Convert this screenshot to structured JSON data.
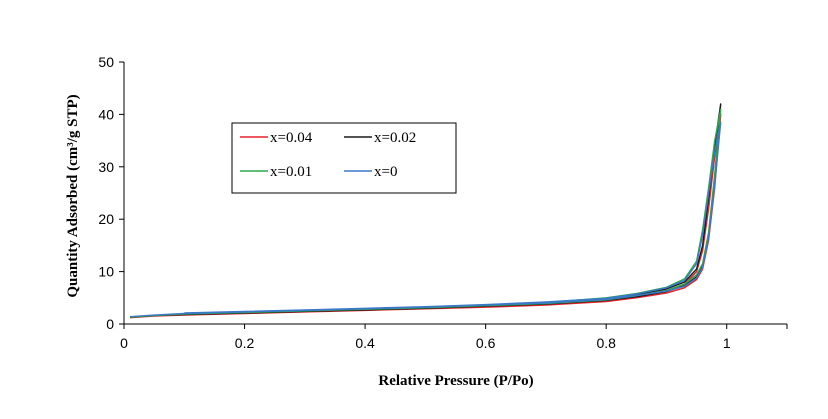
{
  "chart_data": {
    "type": "line",
    "xlabel": "Relative Pressure (P/Po)",
    "ylabel": "Quantity Adsorbed (cm³/g STP)",
    "xlim": [
      0,
      1.1
    ],
    "ylim": [
      0,
      50
    ],
    "x_ticks": [
      "0",
      "0.2",
      "0.4",
      "0.6",
      "0.8",
      "1"
    ],
    "y_ticks": [
      "0",
      "10",
      "20",
      "30",
      "40",
      "50"
    ],
    "grid": false,
    "legend_position": "upper-left",
    "series": [
      {
        "name": "x=0.04",
        "color": "#e8202a",
        "adsorption": [
          [
            0.01,
            1.2
          ],
          [
            0.05,
            1.5
          ],
          [
            0.1,
            1.7
          ],
          [
            0.2,
            2.0
          ],
          [
            0.3,
            2.3
          ],
          [
            0.4,
            2.6
          ],
          [
            0.5,
            2.9
          ],
          [
            0.6,
            3.2
          ],
          [
            0.7,
            3.6
          ],
          [
            0.8,
            4.3
          ],
          [
            0.85,
            5.0
          ],
          [
            0.9,
            5.9
          ],
          [
            0.93,
            6.9
          ],
          [
            0.95,
            8.5
          ],
          [
            0.96,
            10.5
          ],
          [
            0.97,
            16.0
          ],
          [
            0.98,
            26.0
          ],
          [
            0.99,
            40.0
          ]
        ],
        "desorption": [
          [
            0.99,
            40.0
          ],
          [
            0.98,
            32.0
          ],
          [
            0.97,
            22.0
          ],
          [
            0.96,
            14.0
          ],
          [
            0.95,
            10.0
          ],
          [
            0.93,
            7.6
          ],
          [
            0.9,
            6.4
          ],
          [
            0.85,
            5.3
          ],
          [
            0.8,
            4.6
          ],
          [
            0.7,
            3.8
          ],
          [
            0.6,
            3.3
          ],
          [
            0.5,
            3.0
          ],
          [
            0.4,
            2.7
          ],
          [
            0.3,
            2.4
          ],
          [
            0.2,
            2.1
          ],
          [
            0.1,
            1.8
          ]
        ]
      },
      {
        "name": "x=0.02",
        "color": "#1a1a1a",
        "adsorption": [
          [
            0.01,
            1.3
          ],
          [
            0.05,
            1.6
          ],
          [
            0.1,
            1.8
          ],
          [
            0.2,
            2.1
          ],
          [
            0.3,
            2.4
          ],
          [
            0.4,
            2.7
          ],
          [
            0.5,
            3.0
          ],
          [
            0.6,
            3.4
          ],
          [
            0.7,
            3.8
          ],
          [
            0.8,
            4.5
          ],
          [
            0.85,
            5.2
          ],
          [
            0.9,
            6.2
          ],
          [
            0.93,
            7.3
          ],
          [
            0.95,
            9.0
          ],
          [
            0.96,
            11.0
          ],
          [
            0.97,
            17.0
          ],
          [
            0.98,
            28.0
          ],
          [
            0.99,
            42.0
          ]
        ],
        "desorption": [
          [
            0.99,
            42.0
          ],
          [
            0.98,
            34.0
          ],
          [
            0.97,
            24.0
          ],
          [
            0.96,
            15.0
          ],
          [
            0.95,
            10.5
          ],
          [
            0.93,
            8.0
          ],
          [
            0.9,
            6.7
          ],
          [
            0.85,
            5.6
          ],
          [
            0.8,
            4.8
          ],
          [
            0.7,
            4.0
          ],
          [
            0.6,
            3.5
          ],
          [
            0.5,
            3.1
          ],
          [
            0.4,
            2.8
          ],
          [
            0.3,
            2.5
          ],
          [
            0.2,
            2.2
          ],
          [
            0.1,
            1.9
          ]
        ]
      },
      {
        "name": "x=0.01",
        "color": "#2aa84a",
        "adsorption": [
          [
            0.01,
            1.3
          ],
          [
            0.05,
            1.6
          ],
          [
            0.1,
            1.9
          ],
          [
            0.2,
            2.2
          ],
          [
            0.3,
            2.5
          ],
          [
            0.4,
            2.8
          ],
          [
            0.5,
            3.1
          ],
          [
            0.6,
            3.5
          ],
          [
            0.7,
            3.9
          ],
          [
            0.8,
            4.6
          ],
          [
            0.85,
            5.4
          ],
          [
            0.9,
            6.4
          ],
          [
            0.93,
            7.6
          ],
          [
            0.95,
            9.4
          ],
          [
            0.96,
            11.5
          ],
          [
            0.97,
            17.5
          ],
          [
            0.98,
            28.5
          ],
          [
            0.99,
            41.0
          ]
        ],
        "desorption": [
          [
            0.99,
            41.0
          ],
          [
            0.98,
            35.0
          ],
          [
            0.97,
            26.0
          ],
          [
            0.96,
            18.0
          ],
          [
            0.95,
            12.0
          ],
          [
            0.93,
            8.6
          ],
          [
            0.9,
            7.0
          ],
          [
            0.85,
            5.8
          ],
          [
            0.8,
            5.0
          ],
          [
            0.7,
            4.1
          ],
          [
            0.6,
            3.6
          ],
          [
            0.5,
            3.2
          ],
          [
            0.4,
            2.9
          ],
          [
            0.3,
            2.6
          ],
          [
            0.2,
            2.3
          ],
          [
            0.1,
            2.0
          ]
        ]
      },
      {
        "name": "x=0",
        "color": "#3a78c8",
        "adsorption": [
          [
            0.01,
            1.4
          ],
          [
            0.05,
            1.7
          ],
          [
            0.1,
            2.0
          ],
          [
            0.2,
            2.3
          ],
          [
            0.3,
            2.6
          ],
          [
            0.4,
            2.9
          ],
          [
            0.5,
            3.2
          ],
          [
            0.6,
            3.6
          ],
          [
            0.7,
            4.0
          ],
          [
            0.8,
            4.7
          ],
          [
            0.85,
            5.4
          ],
          [
            0.9,
            6.3
          ],
          [
            0.93,
            7.2
          ],
          [
            0.95,
            8.8
          ],
          [
            0.96,
            10.8
          ],
          [
            0.97,
            16.5
          ],
          [
            0.98,
            26.5
          ],
          [
            0.99,
            38.5
          ]
        ],
        "desorption": [
          [
            0.99,
            38.5
          ],
          [
            0.98,
            33.0
          ],
          [
            0.97,
            25.0
          ],
          [
            0.96,
            17.0
          ],
          [
            0.95,
            11.5
          ],
          [
            0.93,
            8.3
          ],
          [
            0.9,
            6.9
          ],
          [
            0.85,
            5.7
          ],
          [
            0.8,
            4.9
          ],
          [
            0.7,
            4.2
          ],
          [
            0.6,
            3.7
          ],
          [
            0.5,
            3.3
          ],
          [
            0.4,
            3.0
          ],
          [
            0.3,
            2.7
          ],
          [
            0.2,
            2.4
          ],
          [
            0.1,
            2.1
          ]
        ]
      }
    ]
  }
}
